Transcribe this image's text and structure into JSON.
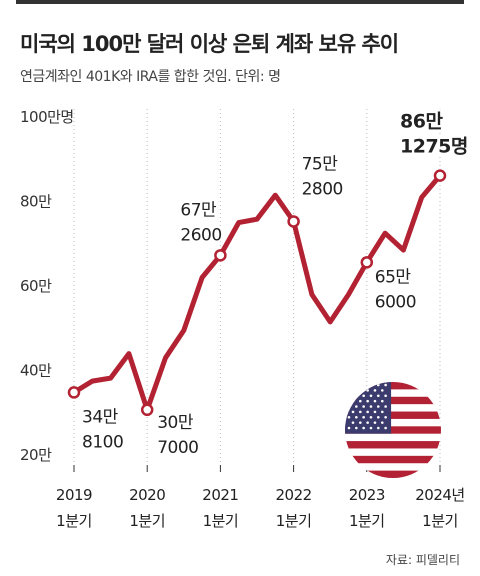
{
  "title": "미국의 100만 달러 이상 은퇴 계좌 보유 추이",
  "subtitle": "연금계좌인 401K와 IRA를 합한 것임. 단위: 명",
  "source": "자료: 피델리티",
  "colors": {
    "line": "#b32232",
    "grid": "#bdbdbd",
    "text": "#222222",
    "flag_red": "#b22234",
    "flag_blue": "#3c3b6e"
  },
  "icons": [
    "us-flag-icon"
  ],
  "chart_data": {
    "type": "line",
    "title": "미국의 100만 달러 이상 은퇴 계좌 보유 추이",
    "ylabel": "",
    "xlabel": "",
    "ylim": [
      20,
      100
    ],
    "y_ticks": [
      {
        "value": 20,
        "label": "20만"
      },
      {
        "value": 40,
        "label": "40만"
      },
      {
        "value": 60,
        "label": "60만"
      },
      {
        "value": 80,
        "label": "80만"
      },
      {
        "value": 100,
        "label": "100만명"
      }
    ],
    "x_ticks": [
      {
        "x": 0,
        "year": "2019",
        "quarter": "1분기"
      },
      {
        "x": 4,
        "year": "2020",
        "quarter": "1분기"
      },
      {
        "x": 8,
        "year": "2021",
        "quarter": "1분기"
      },
      {
        "x": 12,
        "year": "2022",
        "quarter": "1분기"
      },
      {
        "x": 16,
        "year": "2023",
        "quarter": "1분기"
      },
      {
        "x": 20,
        "year": "2024년",
        "quarter": "1분기"
      }
    ],
    "series": [
      {
        "values": [
          {
            "x": 0,
            "y": 34.81
          },
          {
            "x": 1,
            "y": 37.5
          },
          {
            "x": 2,
            "y": 38.2
          },
          {
            "x": 3,
            "y": 44.0
          },
          {
            "x": 4,
            "y": 30.7
          },
          {
            "x": 5,
            "y": 43.0
          },
          {
            "x": 6,
            "y": 49.5
          },
          {
            "x": 7,
            "y": 62.0
          },
          {
            "x": 8,
            "y": 67.26
          },
          {
            "x": 9,
            "y": 75.0
          },
          {
            "x": 10,
            "y": 75.8
          },
          {
            "x": 11,
            "y": 81.5
          },
          {
            "x": 12,
            "y": 75.28
          },
          {
            "x": 13,
            "y": 58.0
          },
          {
            "x": 14,
            "y": 51.5
          },
          {
            "x": 15,
            "y": 58.0
          },
          {
            "x": 16,
            "y": 65.6
          },
          {
            "x": 17,
            "y": 72.5
          },
          {
            "x": 18,
            "y": 68.5
          },
          {
            "x": 19,
            "y": 81.0
          },
          {
            "x": 20,
            "y": 86.1275
          }
        ]
      }
    ],
    "annotations": [
      {
        "x": 0,
        "y": 34.81,
        "lines": [
          "34만",
          "8100"
        ]
      },
      {
        "x": 4,
        "y": 30.7,
        "lines": [
          "30만",
          "7000"
        ]
      },
      {
        "x": 8,
        "y": 67.26,
        "lines": [
          "67만",
          "2600"
        ]
      },
      {
        "x": 12,
        "y": 75.28,
        "lines": [
          "75만",
          "2800"
        ]
      },
      {
        "x": 16,
        "y": 65.6,
        "lines": [
          "65만",
          "6000"
        ]
      },
      {
        "x": 20,
        "y": 86.1275,
        "lines": [
          "86만",
          "1275명"
        ],
        "bold": true
      }
    ],
    "grid": "vertical dotted lines at each 1분기",
    "legend": "none"
  }
}
